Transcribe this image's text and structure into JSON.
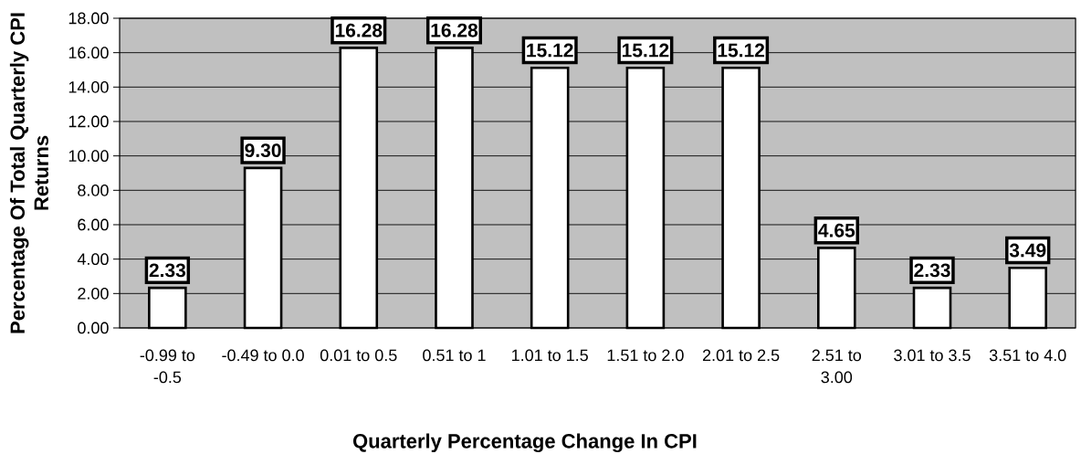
{
  "chart_data": {
    "type": "bar",
    "xlabel": "Quarterly Percentage Change In CPI",
    "ylabel": "Percentage Of Total Quarterly CPI Returns",
    "categories": [
      "-0.99 to -0.5",
      "-0.49 to 0.0",
      "0.01 to 0.5",
      "0.51 to 1",
      "1.01 to 1.5",
      "1.51 to 2.0",
      "2.01 to 2.5",
      "2.51 to 3.00",
      "3.01 to 3.5",
      "3.51 to 4.0"
    ],
    "values": [
      2.33,
      9.3,
      16.28,
      16.28,
      15.12,
      15.12,
      15.12,
      4.65,
      2.33,
      3.49
    ],
    "value_labels": [
      "2.33",
      "9.30",
      "16.28",
      "16.28",
      "15.12",
      "15.12",
      "15.12",
      "4.65",
      "2.33",
      "3.49"
    ],
    "color": "#ffffff",
    "ylim": [
      0,
      18
    ],
    "yticks": [
      {
        "value": 0,
        "label": "0.00"
      },
      {
        "value": 2,
        "label": "2.00"
      },
      {
        "value": 4,
        "label": "4.00"
      },
      {
        "value": 6,
        "label": "6.00"
      },
      {
        "value": 8,
        "label": "8.00"
      },
      {
        "value": 10,
        "label": "10.00"
      },
      {
        "value": 12,
        "label": "12.00"
      },
      {
        "value": 14,
        "label": "14.00"
      },
      {
        "value": 16,
        "label": "16.00"
      },
      {
        "value": 18,
        "label": "18.00"
      }
    ],
    "grid": "y"
  }
}
